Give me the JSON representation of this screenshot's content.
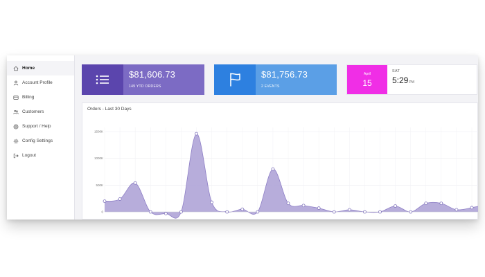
{
  "sidebar": {
    "items": [
      {
        "label": "Home",
        "icon": "home-icon",
        "active": true
      },
      {
        "label": "Account Profile",
        "icon": "user-icon",
        "active": false
      },
      {
        "label": "Billing",
        "icon": "credit-card-icon",
        "active": false
      },
      {
        "label": "Customers",
        "icon": "users-icon",
        "active": false
      },
      {
        "label": "Support / Help",
        "icon": "support-icon",
        "active": false
      },
      {
        "label": "Config Settings",
        "icon": "gear-icon",
        "active": false
      },
      {
        "label": "Logout",
        "icon": "logout-icon",
        "active": false
      }
    ]
  },
  "cards": {
    "orders": {
      "amount": "$81,606.73",
      "subtitle": "149 YTD ORDERS",
      "icon": "list-icon",
      "color": "#7c6bc4",
      "icon_bg": "#5b45ad"
    },
    "events": {
      "amount": "$81,756.73",
      "subtitle": "2 EVENTS",
      "icon": "flag-icon",
      "color": "#5b9fe6",
      "icon_bg": "#2d80e0"
    },
    "date": {
      "month": "April",
      "day": "15",
      "weekday": "SAT",
      "time": "5:29",
      "ampm": "PM",
      "accent": "#f02ee6"
    }
  },
  "panel": {
    "title": "Orders - Last 30 Days"
  },
  "chart_data": {
    "type": "area",
    "title": "Orders - Last 30 Days",
    "xlabel": "",
    "ylabel": "",
    "yticks": [
      "0",
      "500K",
      "1000K",
      "1500K"
    ],
    "ylim": [
      0,
      1500
    ],
    "grid": true,
    "fill_color": "#b3a9d9",
    "line_color": "#8e7fc6",
    "series": [
      {
        "values": [
          200,
          240,
          540,
          0,
          -30,
          0,
          1460,
          180,
          0,
          50,
          0,
          800,
          160,
          120,
          70,
          0,
          40,
          0,
          0,
          110,
          0,
          160,
          160,
          40,
          80
        ]
      }
    ]
  }
}
